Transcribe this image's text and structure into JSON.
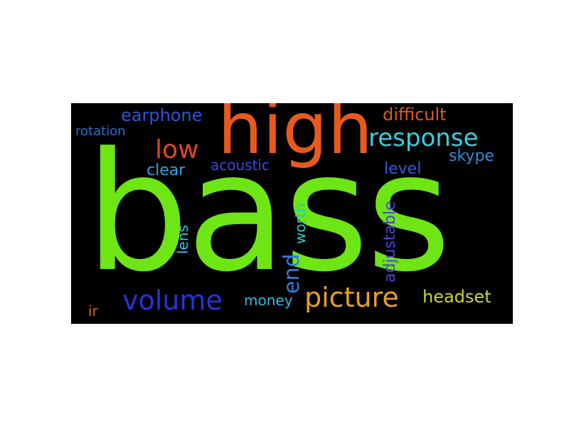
{
  "word_cloud": {
    "background_color": "#000000",
    "words": [
      {
        "id": "bass",
        "text": "bass",
        "color": "#6ee515",
        "orientation": "horizontal"
      },
      {
        "id": "high",
        "text": "high",
        "color": "#e85a1c",
        "orientation": "horizontal"
      },
      {
        "id": "response",
        "text": "response",
        "color": "#35cfe0",
        "orientation": "horizontal"
      },
      {
        "id": "low",
        "text": "low",
        "color": "#e2461f",
        "orientation": "horizontal"
      },
      {
        "id": "earphone",
        "text": "earphone",
        "color": "#2b54d6",
        "orientation": "horizontal"
      },
      {
        "id": "difficult",
        "text": "difficult",
        "color": "#dd5a1f",
        "orientation": "horizontal"
      },
      {
        "id": "rotation",
        "text": "rotation",
        "color": "#2a6fd0",
        "orientation": "horizontal"
      },
      {
        "id": "clear",
        "text": "clear",
        "color": "#2fa3e0",
        "orientation": "horizontal"
      },
      {
        "id": "acoustic",
        "text": "acoustic",
        "color": "#3a48e0",
        "orientation": "horizontal"
      },
      {
        "id": "skype",
        "text": "skype",
        "color": "#2c8fd8",
        "orientation": "horizontal"
      },
      {
        "id": "level",
        "text": "level",
        "color": "#2a5fd8",
        "orientation": "horizontal"
      },
      {
        "id": "volume",
        "text": "volume",
        "color": "#2733d8",
        "orientation": "horizontal"
      },
      {
        "id": "picture",
        "text": "picture",
        "color": "#e8a020",
        "orientation": "horizontal"
      },
      {
        "id": "headset",
        "text": "headset",
        "color": "#c9d626",
        "orientation": "horizontal"
      },
      {
        "id": "money",
        "text": "money",
        "color": "#36b8e0",
        "orientation": "horizontal"
      },
      {
        "id": "ir",
        "text": "ir",
        "color": "#d8601c",
        "orientation": "horizontal"
      },
      {
        "id": "end",
        "text": "end",
        "color": "#2c7fe0",
        "orientation": "vertical"
      },
      {
        "id": "worth",
        "text": "worth",
        "color": "#26c7c0",
        "orientation": "vertical"
      },
      {
        "id": "lens",
        "text": "lens",
        "color": "#36c2e0",
        "orientation": "vertical"
      },
      {
        "id": "adjustable",
        "text": "adjustable",
        "color": "#4f3fd8",
        "orientation": "vertical"
      }
    ]
  }
}
